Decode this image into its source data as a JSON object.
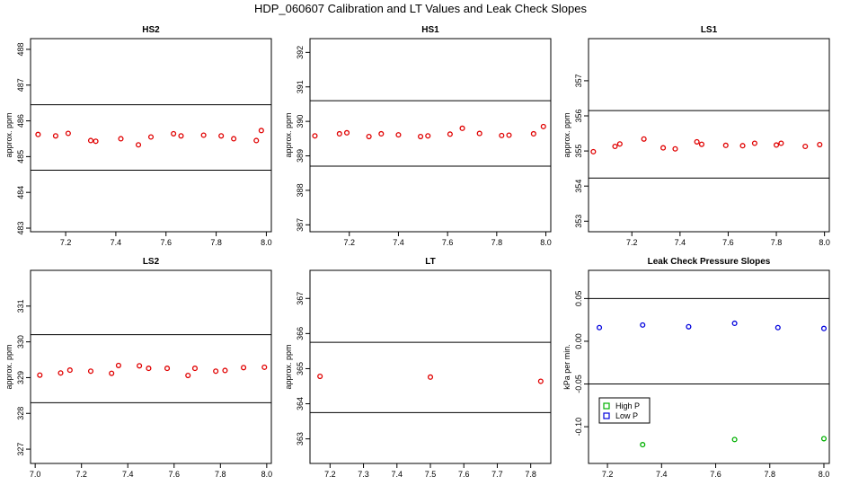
{
  "figure": {
    "title": "HDP_060607  Calibration and LT Values and Leak Check Slopes"
  },
  "chart_data": [
    {
      "type": "scatter",
      "title": "HS2",
      "ylabel": "approx. ppm",
      "xlim": [
        7.06,
        8.02
      ],
      "ylim": [
        482.9,
        488.3
      ],
      "xticks": [
        "7.2",
        "7.4",
        "7.6",
        "7.8",
        "8.0"
      ],
      "xtick_values": [
        7.2,
        7.4,
        7.6,
        7.8,
        8.0
      ],
      "yticks": [
        "483",
        "484",
        "485",
        "486",
        "487",
        "488"
      ],
      "ytick_values": [
        483,
        484,
        485,
        486,
        487,
        488
      ],
      "hlines": [
        486.45,
        484.62
      ],
      "series": [
        {
          "color": "#e00000",
          "x": [
            7.09,
            7.16,
            7.21,
            7.3,
            7.32,
            7.42,
            7.49,
            7.54,
            7.63,
            7.66,
            7.75,
            7.82,
            7.87,
            7.96,
            7.98
          ],
          "y": [
            485.62,
            485.58,
            485.65,
            485.45,
            485.43,
            485.5,
            485.33,
            485.55,
            485.64,
            485.58,
            485.6,
            485.58,
            485.5,
            485.45,
            485.73
          ]
        }
      ]
    },
    {
      "type": "scatter",
      "title": "HS1",
      "ylabel": "approx. ppm",
      "xlim": [
        7.04,
        8.02
      ],
      "ylim": [
        386.8,
        392.4
      ],
      "xticks": [
        "7.2",
        "7.4",
        "7.6",
        "7.8",
        "8.0"
      ],
      "xtick_values": [
        7.2,
        7.4,
        7.6,
        7.8,
        8.0
      ],
      "yticks": [
        "387",
        "388",
        "389",
        "390",
        "391",
        "392"
      ],
      "ytick_values": [
        387,
        388,
        389,
        390,
        391,
        392
      ],
      "hlines": [
        390.6,
        388.7
      ],
      "series": [
        {
          "color": "#e00000",
          "x": [
            7.06,
            7.16,
            7.19,
            7.28,
            7.33,
            7.4,
            7.49,
            7.52,
            7.61,
            7.66,
            7.73,
            7.82,
            7.85,
            7.95,
            7.99
          ],
          "y": [
            389.58,
            389.64,
            389.67,
            389.56,
            389.64,
            389.61,
            389.56,
            389.58,
            389.63,
            389.8,
            389.65,
            389.59,
            389.6,
            389.64,
            389.85
          ]
        }
      ]
    },
    {
      "type": "scatter",
      "title": "LS1",
      "ylabel": "approx. ppm",
      "xlim": [
        7.02,
        8.02
      ],
      "ylim": [
        352.7,
        358.2
      ],
      "xticks": [
        "7.2",
        "7.4",
        "7.6",
        "7.8",
        "8.0"
      ],
      "xtick_values": [
        7.2,
        7.4,
        7.6,
        7.8,
        8.0
      ],
      "yticks": [
        "353",
        "354",
        "355",
        "356",
        "357"
      ],
      "ytick_values": [
        353,
        354,
        355,
        356,
        357
      ],
      "hlines": [
        356.15,
        354.23
      ],
      "series": [
        {
          "color": "#e00000",
          "x": [
            7.04,
            7.13,
            7.15,
            7.25,
            7.33,
            7.38,
            7.47,
            7.49,
            7.59,
            7.66,
            7.71,
            7.8,
            7.82,
            7.92,
            7.98
          ],
          "y": [
            354.98,
            355.13,
            355.2,
            355.34,
            355.09,
            355.06,
            355.26,
            355.19,
            355.16,
            355.15,
            355.22,
            355.17,
            355.22,
            355.13,
            355.18
          ]
        }
      ]
    },
    {
      "type": "scatter",
      "title": "LS2",
      "ylabel": "approx. ppm",
      "xlim": [
        6.98,
        8.02
      ],
      "ylim": [
        326.6,
        332.0
      ],
      "xticks": [
        "7.0",
        "7.2",
        "7.4",
        "7.6",
        "7.8",
        "8.0"
      ],
      "xtick_values": [
        7.0,
        7.2,
        7.4,
        7.6,
        7.8,
        8.0
      ],
      "yticks": [
        "327",
        "328",
        "329",
        "330",
        "331"
      ],
      "ytick_values": [
        327,
        328,
        329,
        330,
        331
      ],
      "hlines": [
        330.2,
        328.3
      ],
      "series": [
        {
          "color": "#e00000",
          "x": [
            7.02,
            7.11,
            7.15,
            7.24,
            7.33,
            7.36,
            7.45,
            7.49,
            7.57,
            7.66,
            7.69,
            7.78,
            7.82,
            7.9,
            7.99
          ],
          "y": [
            329.07,
            329.13,
            329.21,
            329.18,
            329.12,
            329.34,
            329.33,
            329.26,
            329.26,
            329.06,
            329.26,
            329.18,
            329.2,
            329.28,
            329.29
          ]
        }
      ]
    },
    {
      "type": "scatter",
      "title": "LT",
      "ylabel": "approx. ppm",
      "xlim": [
        7.14,
        7.86
      ],
      "ylim": [
        362.3,
        367.8
      ],
      "xticks": [
        "7.2",
        "7.3",
        "7.4",
        "7.5",
        "7.6",
        "7.7",
        "7.8"
      ],
      "xtick_values": [
        7.2,
        7.3,
        7.4,
        7.5,
        7.6,
        7.7,
        7.8
      ],
      "yticks": [
        "363",
        "364",
        "365",
        "366",
        "367"
      ],
      "ytick_values": [
        363,
        364,
        365,
        366,
        367
      ],
      "hlines": [
        365.75,
        363.75
      ],
      "series": [
        {
          "color": "#e00000",
          "x": [
            7.17,
            7.5,
            7.83
          ],
          "y": [
            364.78,
            364.76,
            364.64
          ]
        }
      ]
    },
    {
      "type": "scatter",
      "title": "Leak Check Pressure Slopes",
      "ylabel": "kPa per min.",
      "xlim": [
        7.13,
        8.02
      ],
      "ylim": [
        -0.143,
        0.083
      ],
      "xticks": [
        "7.2",
        "7.4",
        "7.6",
        "7.8",
        "8.0"
      ],
      "xtick_values": [
        7.2,
        7.4,
        7.6,
        7.8,
        8.0
      ],
      "yticks": [
        "-0.10",
        "-0.05",
        "0.00",
        "0.05"
      ],
      "ytick_values": [
        -0.1,
        -0.05,
        0.0,
        0.05
      ],
      "hlines": [
        0.05,
        -0.05
      ],
      "legend": {
        "placement": "left",
        "entries": [
          {
            "label": "High P",
            "color": "#00b000"
          },
          {
            "label": "Low P",
            "color": "#0000dd"
          }
        ]
      },
      "series": [
        {
          "name": "High P",
          "color": "#00b000",
          "x": [
            7.33,
            7.67,
            8.0
          ],
          "y": [
            -0.121,
            -0.115,
            -0.114
          ]
        },
        {
          "name": "Low P",
          "color": "#0000dd",
          "x": [
            7.17,
            7.33,
            7.5,
            7.67,
            7.83,
            8.0
          ],
          "y": [
            0.016,
            0.019,
            0.017,
            0.021,
            0.016,
            0.015
          ]
        }
      ]
    }
  ]
}
